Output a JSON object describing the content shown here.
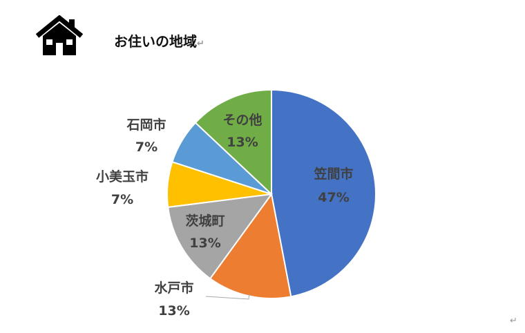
{
  "header": {
    "title": "お住いの地域",
    "icon": "house-icon",
    "return_mark": "↵"
  },
  "footer": {
    "return_mark": "↵"
  },
  "chart_data": {
    "type": "pie",
    "title": "",
    "start_angle_deg": 0,
    "direction": "clockwise",
    "slices": [
      {
        "label": "笠間市",
        "value": 47,
        "percent_label": "47%",
        "color": "#4472C4",
        "label_position": "inside"
      },
      {
        "label": "水戸市",
        "value": 13,
        "percent_label": "13%",
        "color": "#ED7D31",
        "label_position": "outside"
      },
      {
        "label": "茨城町",
        "value": 13,
        "percent_label": "13%",
        "color": "#A5A5A5",
        "label_position": "inside"
      },
      {
        "label": "小美玉市",
        "value": 7,
        "percent_label": "7%",
        "color": "#FFC000",
        "label_position": "outside"
      },
      {
        "label": "石岡市",
        "value": 7,
        "percent_label": "7%",
        "color": "#5B9BD5",
        "label_position": "outside"
      },
      {
        "label": "その他",
        "value": 13,
        "percent_label": "13%",
        "color": "#70AD47",
        "label_position": "inside"
      }
    ]
  }
}
